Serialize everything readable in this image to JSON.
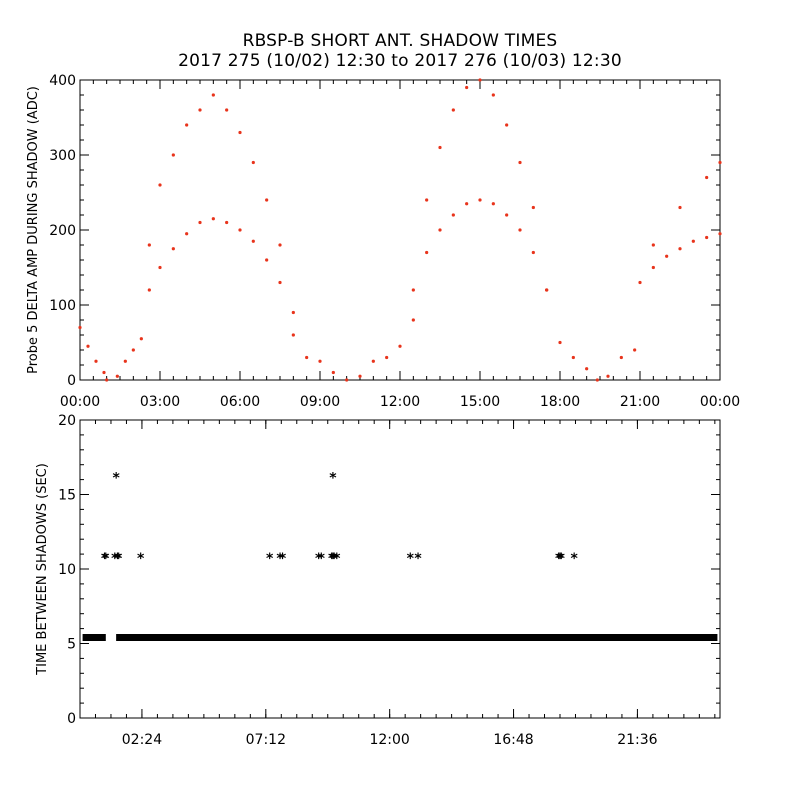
{
  "title": "RBSP-B SHORT ANT. SHADOW TIMES",
  "subtitle": "2017 275 (10/02) 12:30 to 2017 276 (10/03) 12:30",
  "colors": {
    "amplitude_points": "#e8341c",
    "interval_points": "#000000",
    "axes": "#000000"
  },
  "chart_data": [
    {
      "type": "scatter",
      "ylabel": "Probe 5 DELTA AMP DURING SHADOW (ADC)",
      "xlabel": "",
      "x_unit": "hours",
      "xlim": [
        0,
        24
      ],
      "ylim": [
        0,
        400
      ],
      "x_ticks": [
        0,
        3,
        6,
        9,
        12,
        15,
        18,
        21,
        24
      ],
      "x_tick_labels": [
        "00:00",
        "03:00",
        "06:00",
        "09:00",
        "12:00",
        "15:00",
        "18:00",
        "21:00",
        "00:00"
      ],
      "y_ticks": [
        0,
        100,
        200,
        300,
        400
      ],
      "y_tick_labels": [
        "0",
        "100",
        "200",
        "300",
        "400"
      ],
      "grid": false,
      "series": [
        {
          "x": [
            0.0,
            0.3,
            0.6,
            0.9,
            1.0,
            1.4,
            1.7,
            2.0,
            2.3,
            2.6,
            3.0,
            3.5,
            4.0,
            4.5,
            5.0,
            5.5,
            6.0,
            6.5,
            7.0,
            7.5,
            8.0,
            8.5,
            9.0,
            9.5,
            10.0,
            10.5,
            11.0,
            11.5,
            12.0,
            12.5,
            13.0,
            13.5,
            14.0,
            14.5,
            15.0,
            15.5,
            16.0,
            16.5,
            17.0,
            17.5,
            18.0,
            18.5,
            19.0,
            19.4,
            19.8,
            20.3,
            20.8,
            21.5,
            22.5,
            23.5,
            24.0
          ],
          "y": [
            70,
            45,
            25,
            10,
            0,
            5,
            25,
            40,
            55,
            180,
            260,
            300,
            340,
            360,
            380,
            360,
            330,
            290,
            240,
            180,
            60,
            30,
            25,
            10,
            0,
            5,
            25,
            30,
            45,
            80,
            240,
            310,
            360,
            390,
            400,
            380,
            340,
            290,
            230,
            120,
            50,
            30,
            15,
            0,
            5,
            30,
            40,
            180,
            230,
            270,
            290
          ]
        },
        {
          "x": [
            2.6,
            3.0,
            3.5,
            4.0,
            4.5,
            5.0,
            5.5,
            6.0,
            6.5,
            7.0,
            7.5,
            8.0,
            12.5,
            13.0,
            13.5,
            14.0,
            14.5,
            15.0,
            15.5,
            16.0,
            16.5,
            17.0,
            17.5,
            21.0,
            21.5,
            22.0,
            22.5,
            23.0,
            23.5,
            24.0
          ],
          "y": [
            120,
            150,
            175,
            195,
            210,
            215,
            210,
            200,
            185,
            160,
            130,
            90,
            120,
            170,
            200,
            220,
            235,
            240,
            235,
            220,
            200,
            170,
            120,
            130,
            150,
            165,
            175,
            185,
            190,
            195
          ]
        }
      ]
    },
    {
      "type": "scatter",
      "ylabel": "TIME BETWEEN SHADOWS (SEC)",
      "xlabel": "",
      "x_unit": "hours",
      "xlim": [
        0,
        24.8
      ],
      "ylim": [
        0,
        20
      ],
      "x_ticks": [
        2.4,
        7.2,
        12.0,
        16.8,
        21.6
      ],
      "x_tick_labels": [
        "02:24",
        "07:12",
        "12:00",
        "16:48",
        "21:36"
      ],
      "y_ticks": [
        0,
        5,
        10,
        15,
        20
      ],
      "y_tick_labels": [
        "0",
        "5",
        "10",
        "15",
        "20"
      ],
      "grid": false,
      "baseline": {
        "value": 5.4,
        "x_ranges": [
          [
            0.1,
            1.0
          ],
          [
            1.4,
            24.7
          ]
        ]
      },
      "series": [
        {
          "x": [
            0.95,
            1.0,
            1.35,
            1.45,
            1.5,
            1.4,
            2.35,
            7.35,
            7.75,
            7.85,
            9.25,
            9.35,
            9.75,
            9.8,
            9.85,
            9.95,
            9.8,
            12.8,
            13.1,
            18.55,
            18.6,
            18.65,
            19.15
          ],
          "y": [
            10.8,
            10.8,
            10.8,
            10.8,
            10.8,
            16.2,
            10.8,
            10.8,
            10.8,
            10.8,
            10.8,
            10.8,
            10.8,
            10.8,
            10.8,
            10.8,
            16.2,
            10.8,
            10.8,
            10.8,
            10.8,
            10.8,
            10.8
          ]
        }
      ]
    }
  ]
}
